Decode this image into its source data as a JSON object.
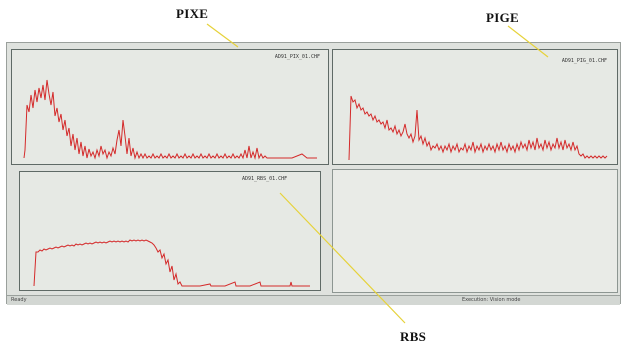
{
  "labels": {
    "pixe": "PIXE",
    "pige": "PIGE",
    "rbs": "RBS"
  },
  "panes": {
    "pixe": {
      "filename": "AD91_PIX_01.CHF"
    },
    "pige": {
      "filename": "AD91_PIG_01.CHF"
    },
    "rbs": {
      "filename": "AD91_RBS_01.CHF"
    }
  },
  "status": {
    "left": "Ready",
    "right": "Execution: Vision mode"
  },
  "colors": {
    "spectrum": "#d42a2a",
    "callout_line": "#e6d23a"
  }
}
